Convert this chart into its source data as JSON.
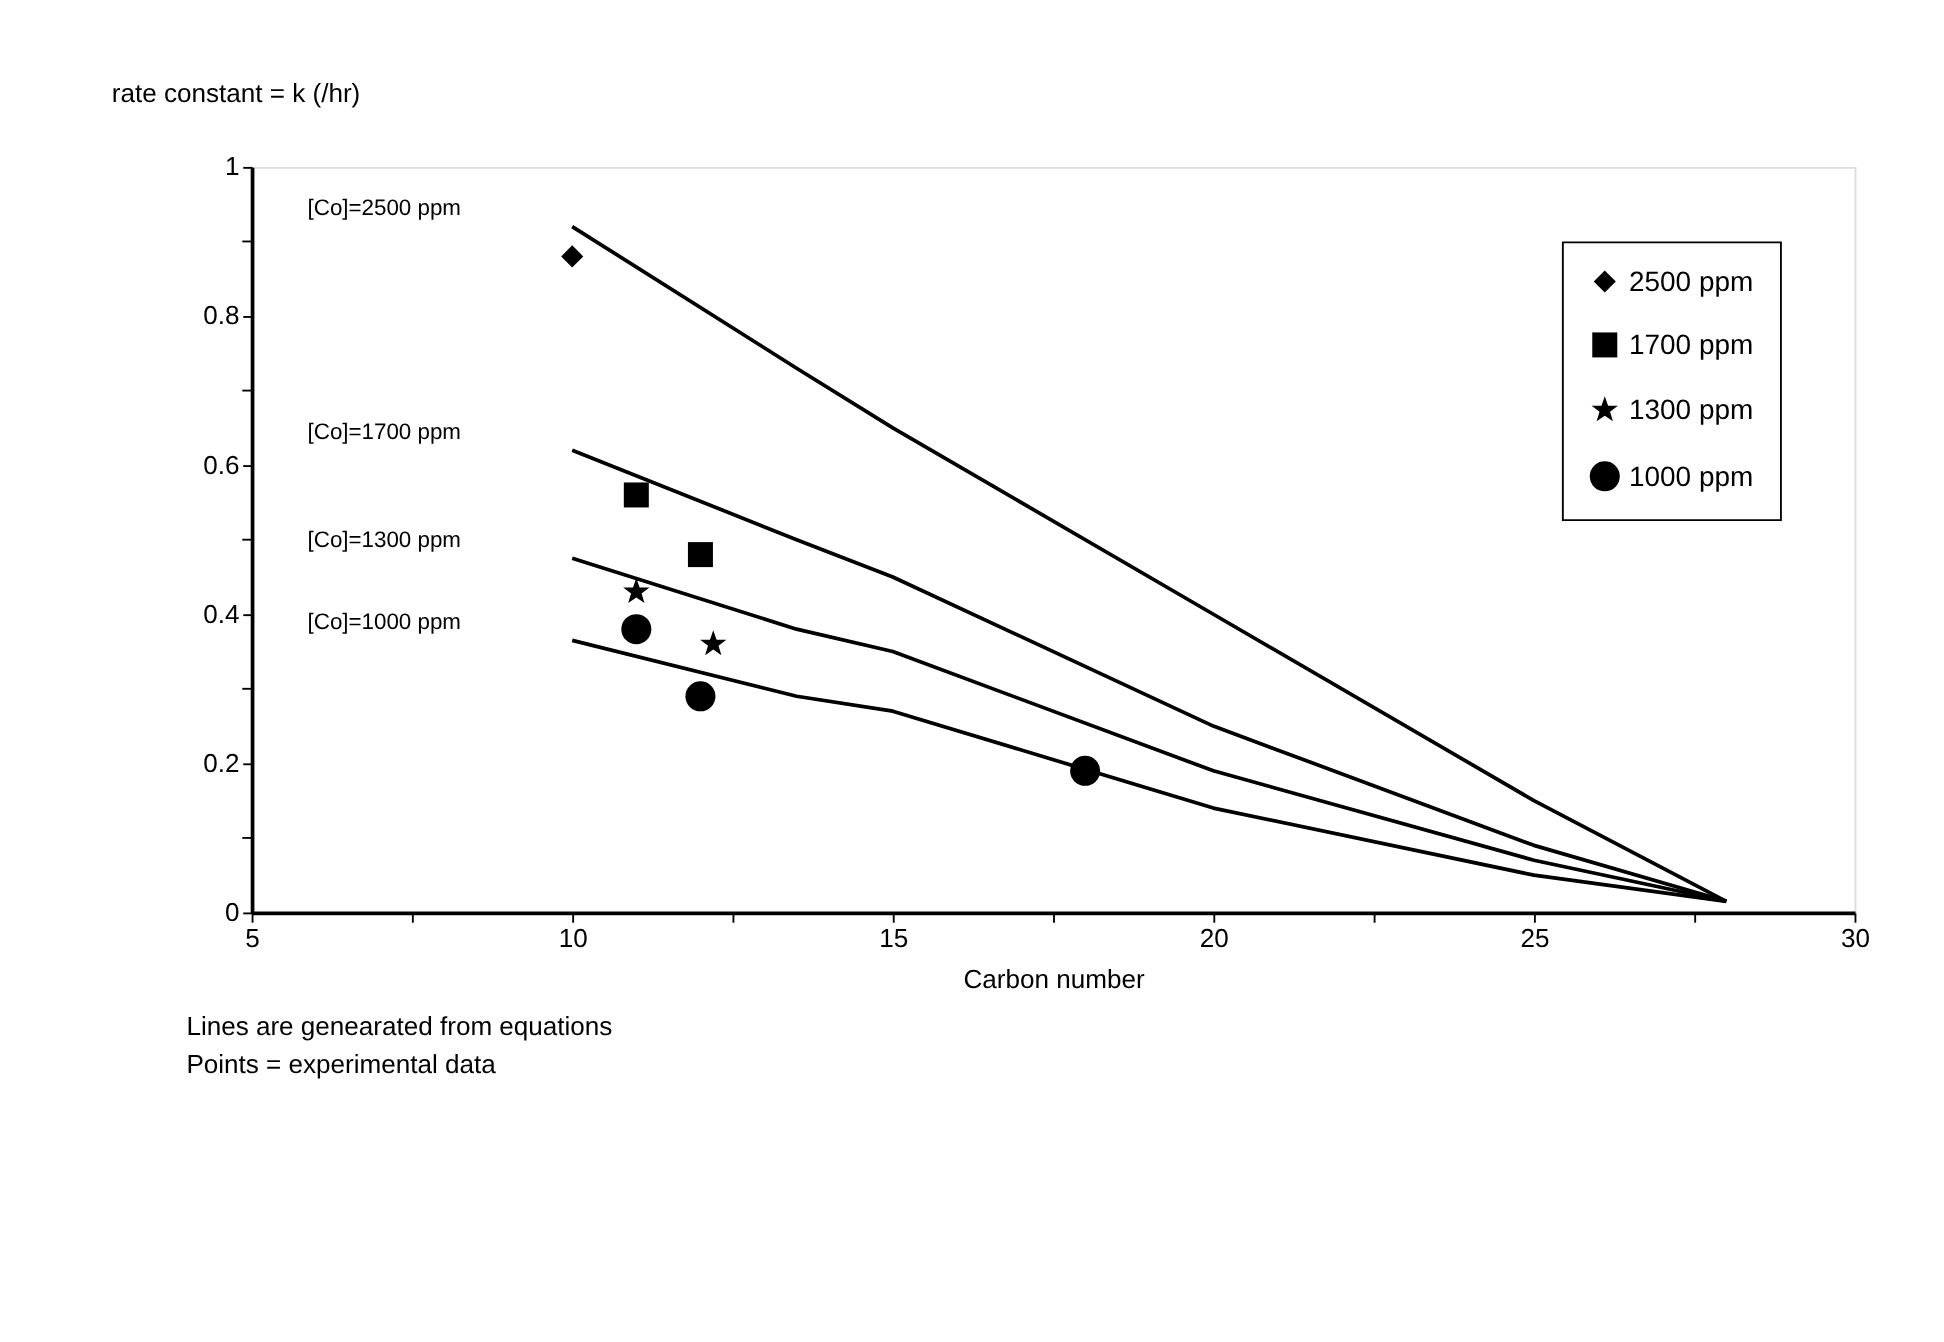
{
  "chart_data": {
    "type": "line",
    "title": "rate constant = k (/hr)",
    "xlabel": "Carbon number",
    "xlim": [
      5,
      30
    ],
    "ylim": [
      0,
      1
    ],
    "xticks": [
      5,
      {
        "value": 7.5,
        "label": null
      },
      10,
      {
        "value": 12.5,
        "label": null
      },
      15,
      {
        "value": 17.5,
        "label": null
      },
      20,
      {
        "value": 22.5,
        "label": null
      },
      25,
      {
        "value": 27.5,
        "label": null
      },
      30
    ],
    "yticks": [
      0,
      {
        "value": 0.1,
        "label": null
      },
      0.2,
      {
        "value": 0.3,
        "label": null
      },
      0.4,
      {
        "value": 0.5,
        "label": null
      },
      0.6,
      {
        "value": 0.7,
        "label": null
      },
      0.8,
      {
        "value": 0.9,
        "label": null
      },
      1
    ],
    "grid": false,
    "legend": "top right",
    "series": [
      {
        "color": "#000000",
        "marker": "none",
        "x": [
          10,
          13.5,
          15,
          20,
          25,
          28
        ],
        "values": [
          0.92,
          0.73,
          0.65,
          0.4,
          0.15,
          0.015
        ]
      },
      {
        "color": "#000000",
        "marker": "none",
        "x": [
          10,
          13.5,
          15,
          20,
          25,
          28
        ],
        "values": [
          0.62,
          0.5,
          0.45,
          0.25,
          0.09,
          0.015
        ]
      },
      {
        "color": "#000000",
        "marker": "none",
        "x": [
          10,
          13.5,
          15,
          20,
          25,
          28
        ],
        "values": [
          0.475,
          0.38,
          0.35,
          0.19,
          0.07,
          0.015
        ]
      },
      {
        "color": "#000000",
        "marker": "none",
        "x": [
          10,
          13.5,
          15,
          20,
          25,
          28
        ],
        "values": [
          0.365,
          0.29,
          0.27,
          0.14,
          0.05,
          0.015
        ]
      },
      {
        "type": "scatter",
        "name": "2500 ppm",
        "color": "#000000",
        "marker": "diamond",
        "x": [
          10
        ],
        "values": [
          0.88
        ]
      },
      {
        "type": "scatter",
        "name": "1700 ppm",
        "color": "#000000",
        "marker": "square",
        "x": [
          11,
          12
        ],
        "values": [
          0.56,
          0.48
        ]
      },
      {
        "type": "scatter",
        "name": "1300 ppm",
        "color": "#000000",
        "marker": "star",
        "x": [
          11,
          12.2
        ],
        "values": [
          0.43,
          0.36
        ]
      },
      {
        "type": "scatter",
        "name": "1000 ppm",
        "color": "#000000",
        "marker": "circle",
        "x": [
          11,
          12,
          18
        ],
        "values": [
          0.38,
          0.29,
          0.19
        ]
      }
    ],
    "annotations": [
      "[Co]=2500 ppm",
      "[Co]=1700 ppm",
      "[Co]=1300 ppm",
      "[Co]=1000 ppm",
      "Lines are genearated from equations",
      "Points = experimental data"
    ]
  }
}
